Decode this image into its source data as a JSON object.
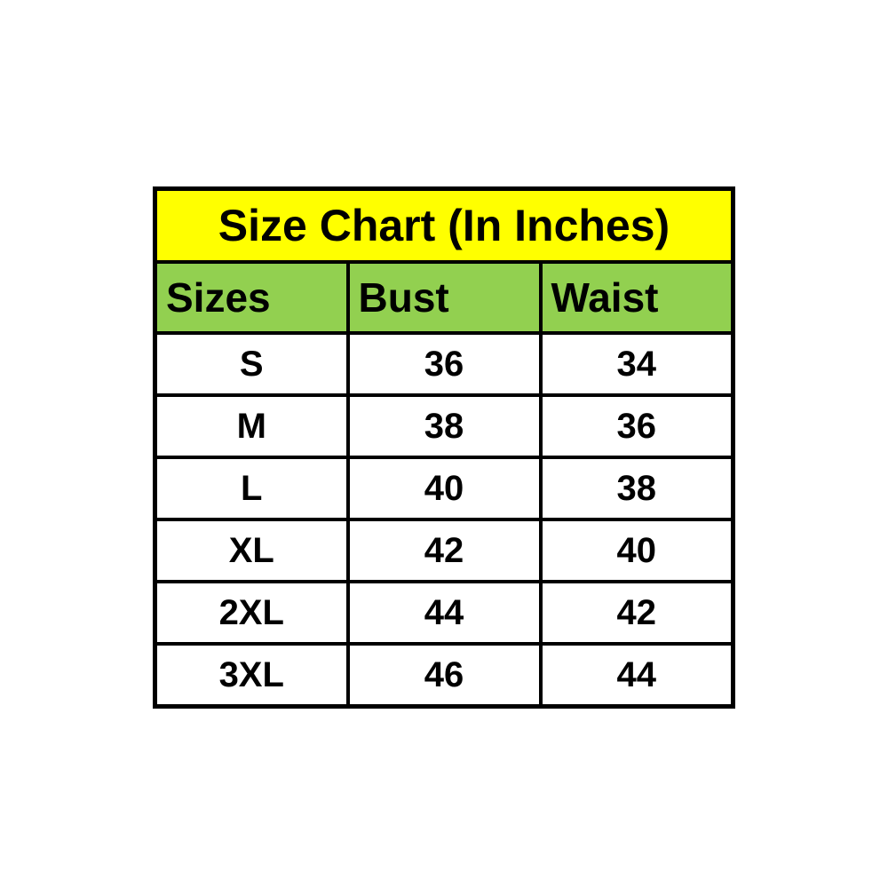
{
  "colors": {
    "page_background": "#FFFFFF",
    "title_background": "#FFFF00",
    "header_background": "#92D050",
    "border": "#000000",
    "text": "#000000"
  },
  "table": {
    "title": "Size Chart (In Inches)",
    "headers": [
      "Sizes",
      "Bust",
      "Waist"
    ],
    "rows": [
      [
        "S",
        "36",
        "34"
      ],
      [
        "M",
        "38",
        "36"
      ],
      [
        "L",
        "40",
        "38"
      ],
      [
        "XL",
        "42",
        "40"
      ],
      [
        "2XL",
        "44",
        "42"
      ],
      [
        "3XL",
        "46",
        "44"
      ]
    ]
  },
  "chart_data": {
    "type": "table",
    "title": "Size Chart (In Inches)",
    "columns": [
      "Sizes",
      "Bust",
      "Waist"
    ],
    "rows": [
      {
        "size": "S",
        "bust": 36,
        "waist": 34
      },
      {
        "size": "M",
        "bust": 38,
        "waist": 36
      },
      {
        "size": "L",
        "bust": 40,
        "waist": 38
      },
      {
        "size": "XL",
        "bust": 42,
        "waist": 40
      },
      {
        "size": "2XL",
        "bust": 44,
        "waist": 42
      },
      {
        "size": "3XL",
        "bust": 46,
        "waist": 44
      }
    ],
    "units": "inches",
    "layout": "title row spans all columns; header row green; data rows white; heavy black grid borders"
  }
}
